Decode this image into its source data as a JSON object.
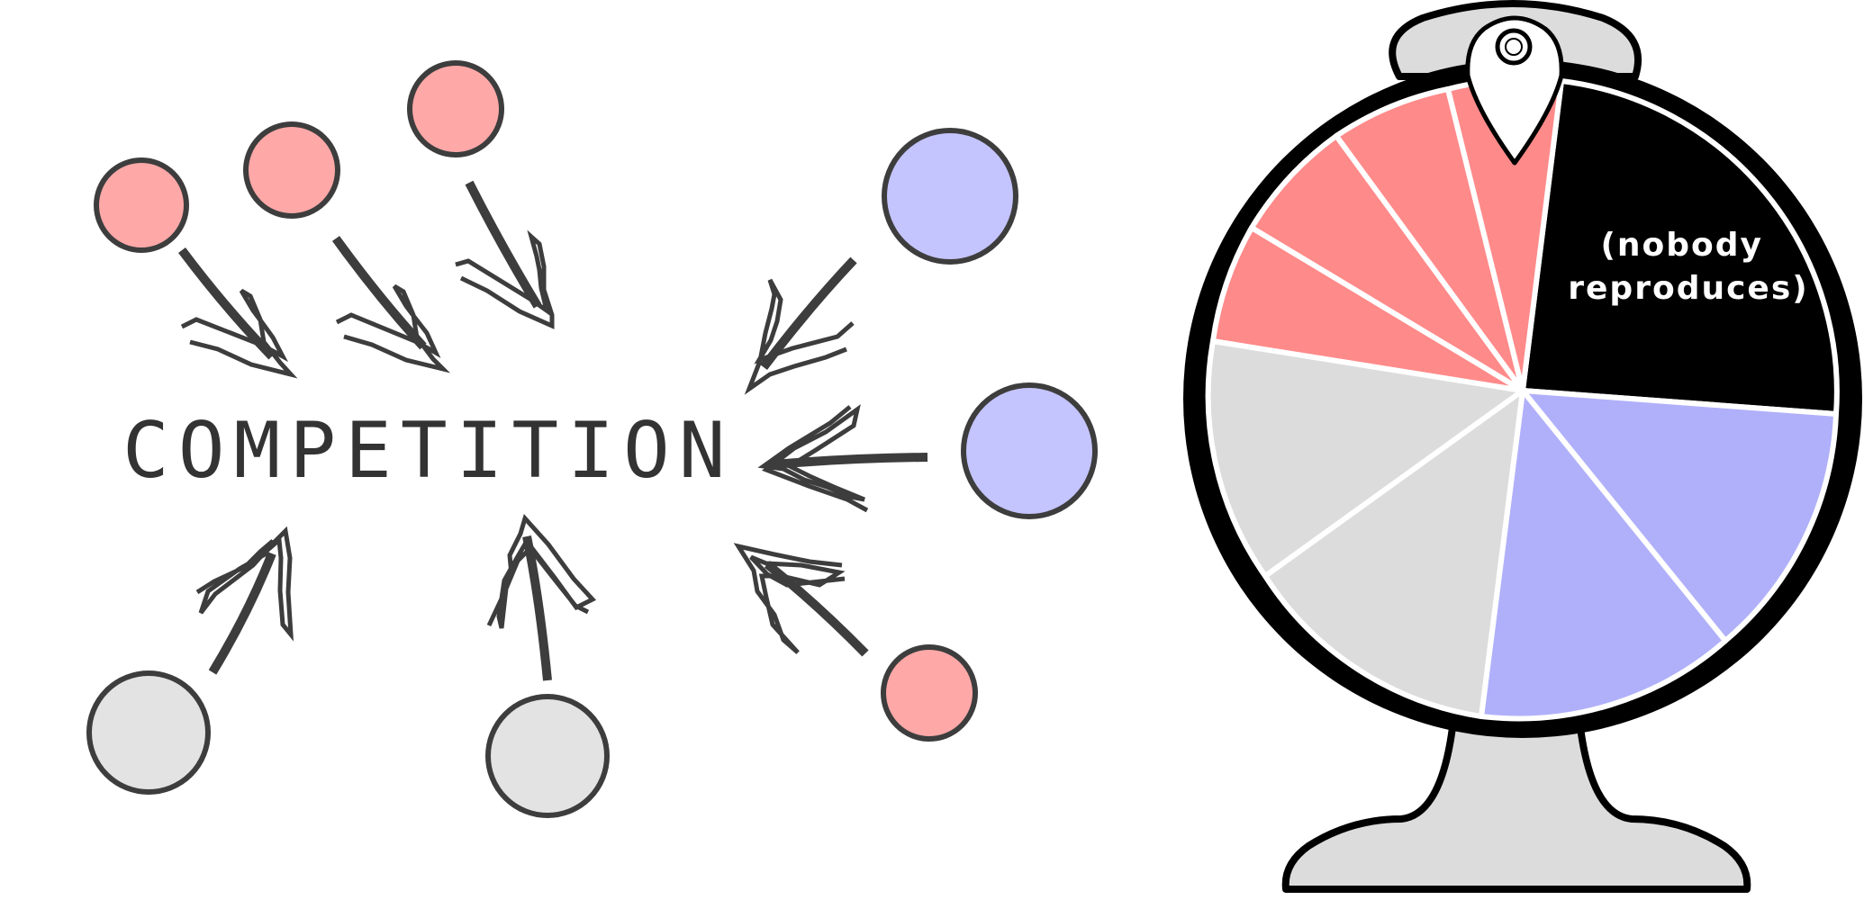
{
  "diagram": {
    "center_label": "COMPETITION",
    "circles": [
      {
        "role": "pink-circle-1",
        "color": "#ffa8a8"
      },
      {
        "role": "pink-circle-2",
        "color": "#ffa8a8"
      },
      {
        "role": "pink-circle-3",
        "color": "#ffa8a8"
      },
      {
        "role": "blue-circle-1",
        "color": "#c4c4ff"
      },
      {
        "role": "blue-circle-2",
        "color": "#c4c4ff"
      },
      {
        "role": "pink-circle-4",
        "color": "#ffa8a8"
      },
      {
        "role": "gray-circle-1",
        "color": "#e3e3e3"
      },
      {
        "role": "gray-circle-2",
        "color": "#e3e3e3"
      }
    ],
    "arrow_color": "#3d3d3d",
    "circle_stroke": "#3d3d3d"
  },
  "wheel": {
    "segment_label_line1": "(nobody",
    "segment_label_line2": "reproduces)",
    "colors": {
      "pink": "#ff8a8a",
      "black": "#000000",
      "blue": "#b0b0fa",
      "gray": "#dcdcdc",
      "stand": "#dcdcdc",
      "outline": "#000000"
    }
  }
}
